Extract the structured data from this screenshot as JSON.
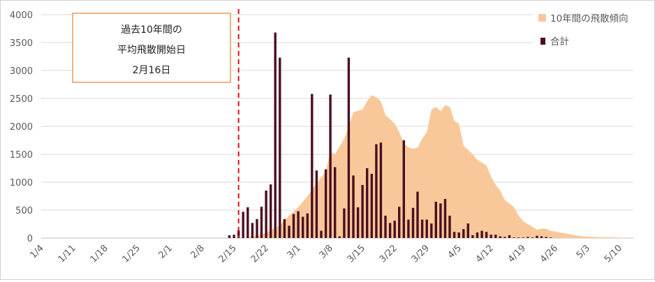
{
  "chart_data": {
    "type": "bar",
    "ylim": [
      0,
      4000
    ],
    "yticks": [
      0,
      500,
      1000,
      1500,
      2000,
      2500,
      3000,
      3500,
      4000
    ],
    "x_range_days": [
      0,
      129
    ],
    "xticks": [
      {
        "day": 0,
        "label": "1/4"
      },
      {
        "day": 7,
        "label": "1/11"
      },
      {
        "day": 14,
        "label": "1/18"
      },
      {
        "day": 21,
        "label": "1/25"
      },
      {
        "day": 28,
        "label": "2/1"
      },
      {
        "day": 35,
        "label": "2/8"
      },
      {
        "day": 42,
        "label": "2/15"
      },
      {
        "day": 49,
        "label": "2/22"
      },
      {
        "day": 56,
        "label": "3/1"
      },
      {
        "day": 63,
        "label": "3/8"
      },
      {
        "day": 70,
        "label": "3/15"
      },
      {
        "day": 77,
        "label": "3/22"
      },
      {
        "day": 84,
        "label": "3/29"
      },
      {
        "day": 91,
        "label": "4/5"
      },
      {
        "day": 98,
        "label": "4/12"
      },
      {
        "day": 105,
        "label": "4/19"
      },
      {
        "day": 112,
        "label": "4/26"
      },
      {
        "day": 119,
        "label": "5/3"
      },
      {
        "day": 126,
        "label": "5/10"
      }
    ],
    "grid": true,
    "legend_position": "top-right",
    "series": [
      {
        "name": "10年間の飛散傾向",
        "type": "area",
        "color": "#f9c89a",
        "points": [
          [
            44,
            0
          ],
          [
            48,
            60
          ],
          [
            50,
            140
          ],
          [
            52,
            230
          ],
          [
            54,
            400
          ],
          [
            56,
            550
          ],
          [
            58,
            750
          ],
          [
            60,
            980
          ],
          [
            62,
            1200
          ],
          [
            63,
            1550
          ],
          [
            64,
            1500
          ],
          [
            66,
            1780
          ],
          [
            67,
            2000
          ],
          [
            68,
            2250
          ],
          [
            69,
            2280
          ],
          [
            70,
            2300
          ],
          [
            71,
            2450
          ],
          [
            72,
            2560
          ],
          [
            73,
            2520
          ],
          [
            74,
            2450
          ],
          [
            75,
            2200
          ],
          [
            77,
            2050
          ],
          [
            78,
            1900
          ],
          [
            79,
            1700
          ],
          [
            80,
            1620
          ],
          [
            81,
            1600
          ],
          [
            82,
            1620
          ],
          [
            83,
            1780
          ],
          [
            84,
            1900
          ],
          [
            85,
            2300
          ],
          [
            86,
            2350
          ],
          [
            87,
            2270
          ],
          [
            88,
            2380
          ],
          [
            89,
            2350
          ],
          [
            90,
            2100
          ],
          [
            91,
            2050
          ],
          [
            92,
            1650
          ],
          [
            93,
            1580
          ],
          [
            94,
            1500
          ],
          [
            95,
            1400
          ],
          [
            96,
            1350
          ],
          [
            97,
            1300
          ],
          [
            98,
            1100
          ],
          [
            99,
            950
          ],
          [
            100,
            850
          ],
          [
            101,
            680
          ],
          [
            102,
            620
          ],
          [
            103,
            550
          ],
          [
            104,
            400
          ],
          [
            105,
            300
          ],
          [
            106,
            250
          ],
          [
            107,
            200
          ],
          [
            108,
            150
          ],
          [
            109,
            170
          ],
          [
            110,
            165
          ],
          [
            111,
            130
          ],
          [
            113,
            100
          ],
          [
            115,
            70
          ],
          [
            117,
            40
          ],
          [
            119,
            25
          ],
          [
            122,
            15
          ],
          [
            126,
            8
          ],
          [
            129,
            0
          ]
        ]
      },
      {
        "name": "合計",
        "type": "bar",
        "color": "#4a1020",
        "days": [
          41,
          42,
          43,
          44,
          45,
          46,
          47,
          48,
          49,
          50,
          51,
          52,
          53,
          54,
          55,
          56,
          57,
          58,
          59,
          60,
          61,
          62,
          63,
          64,
          65,
          66,
          67,
          68,
          69,
          70,
          71,
          72,
          73,
          74,
          75,
          76,
          77,
          78,
          79,
          80,
          81,
          82,
          83,
          84,
          85,
          86,
          87,
          88,
          89,
          90,
          91,
          92,
          93,
          94,
          95,
          96,
          97,
          98,
          99,
          100,
          101,
          102,
          103,
          104,
          105,
          106,
          107,
          108,
          109,
          110,
          111
        ],
        "values": [
          50,
          60,
          140,
          470,
          550,
          270,
          340,
          560,
          850,
          960,
          3680,
          3230,
          340,
          220,
          430,
          480,
          380,
          440,
          2580,
          1210,
          130,
          1230,
          2570,
          1270,
          30,
          530,
          3230,
          1120,
          550,
          950,
          1250,
          1150,
          1680,
          1710,
          400,
          270,
          310,
          560,
          1750,
          330,
          540,
          830,
          330,
          330,
          260,
          650,
          620,
          700,
          400,
          110,
          100,
          160,
          260,
          50,
          100,
          130,
          110,
          60,
          60,
          30,
          20,
          50,
          10,
          10,
          10,
          20,
          10,
          40,
          30,
          20,
          10
        ]
      }
    ],
    "annotation": {
      "lines": [
        "過去10年間の",
        "平均飛散開始日",
        "2月16日"
      ],
      "marker_day": 43,
      "marker_color": "#e01010",
      "box_border_color": "#e8893a"
    }
  }
}
